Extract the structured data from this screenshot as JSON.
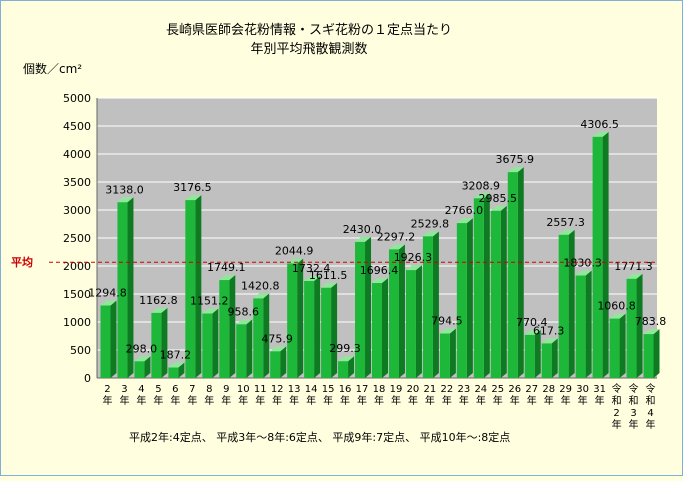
{
  "chart_data": {
    "type": "bar",
    "title_line1": "長崎県医師会花粉情報・スギ花粉の１定点当たり",
    "title_line2": "年別平均飛散観測数",
    "ylabel": "個数／cm²",
    "ylim": [
      0,
      5000
    ],
    "yticks": [
      0,
      500,
      1000,
      1500,
      2000,
      2500,
      3000,
      3500,
      4000,
      4500,
      5000
    ],
    "grid": true,
    "average_label": "平均",
    "average_value": 2067,
    "footnote": "平成2年:4定点、 平成3年～8年:6定点、 平成9年:7定点、 平成10年～:8定点",
    "categories": [
      "2\n年",
      "3\n年",
      "4\n年",
      "5\n年",
      "6\n年",
      "7\n年",
      "8\n年",
      "9\n年",
      "10\n年",
      "11\n年",
      "12\n年",
      "13\n年",
      "14\n年",
      "15\n年",
      "16\n年",
      "17\n年",
      "18\n年",
      "19\n年",
      "20\n年",
      "21\n年",
      "22\n年",
      "23\n年",
      "24\n年",
      "25\n年",
      "26\n年",
      "27\n年",
      "28\n年",
      "29\n年",
      "30\n年",
      "31\n年",
      "令\n和\n2\n年",
      "令\n和\n3\n年",
      "令\n和\n4\n年"
    ],
    "values": [
      1294.8,
      3138.0,
      298.0,
      1162.8,
      187.2,
      3176.5,
      1151.2,
      1749.1,
      958.6,
      1420.8,
      475.9,
      2044.9,
      1732.4,
      1611.5,
      299.3,
      2430.0,
      1696.4,
      2297.2,
      1926.3,
      2529.8,
      794.5,
      2766.0,
      3208.9,
      2985.5,
      3675.9,
      770.4,
      617.3,
      2557.3,
      1830.3,
      4306.5,
      1060.8,
      1771.3,
      783.8
    ],
    "value_labels": [
      "1294.8",
      "3138.0",
      "298.0",
      "1162.8",
      "187.2",
      "3176.5",
      "1151.2",
      "1749.1",
      "958.6",
      "1420.8",
      "475.9",
      "2044.9",
      "1732.4",
      "1611.5",
      "299.3",
      "2430.0",
      "1696.4",
      "2297.2",
      "1926.3",
      "2529.8",
      "794.5",
      "2766.0",
      "3208.9",
      "2985.5",
      "3675.9",
      "770.4",
      "617.3",
      "2557.3",
      "1830.3",
      "4306.5",
      "1060.8",
      "1771.3",
      "783.8"
    ],
    "colors": {
      "plot_bg": "#c0c0c0",
      "bar_front": "#1db83a",
      "bar_side": "#0e7a22",
      "bar_top": "#8fe89a",
      "average_line": "#cc0000",
      "grid": "#ffffff"
    }
  }
}
